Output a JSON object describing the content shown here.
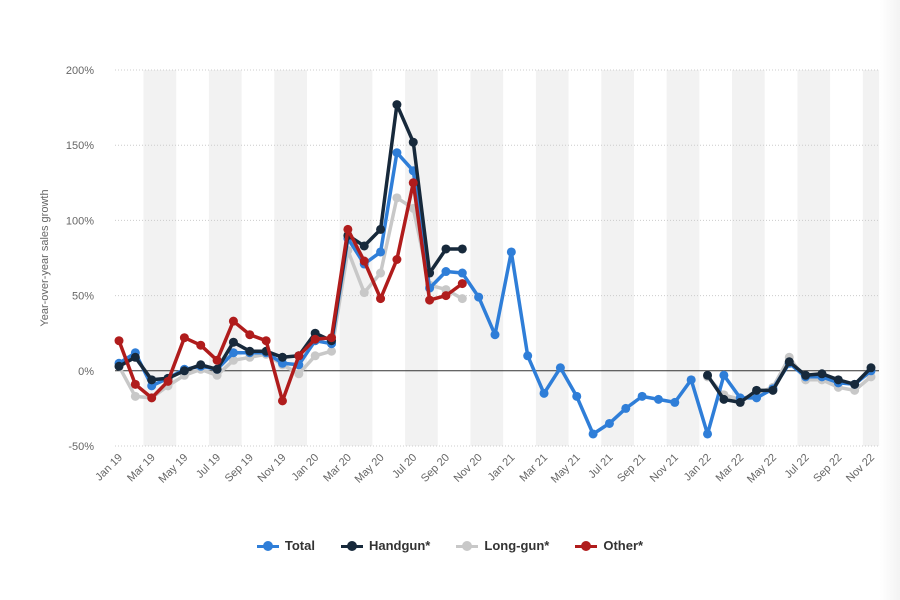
{
  "chart_data": {
    "type": "line",
    "ylabel": "Year-over-year sales growth",
    "xlabel": "",
    "ylim": [
      -50,
      200
    ],
    "yticks": [
      200,
      150,
      100,
      50,
      0,
      -50
    ],
    "ytick_labels": [
      "200%",
      "150%",
      "100%",
      "50%",
      "0%",
      "-50%"
    ],
    "categories": [
      "Jan 19",
      "Feb 19",
      "Mar 19",
      "Apr 19",
      "May 19",
      "Jun 19",
      "Jul 19",
      "Aug 19",
      "Sep 19",
      "Oct 19",
      "Nov 19",
      "Dec 19",
      "Jan 20",
      "Feb 20",
      "Mar 20",
      "Apr 20",
      "May 20",
      "Jun 20",
      "Jul 20",
      "Aug 20",
      "Sep 20",
      "Oct 20",
      "Nov 20",
      "Dec 20",
      "Jan 21",
      "Feb 21",
      "Mar 21",
      "Apr 21",
      "May 21",
      "Jun 21",
      "Jul 21",
      "Aug 21",
      "Sep 21",
      "Oct 21",
      "Nov 21",
      "Dec 21",
      "Jan 22",
      "Feb 22",
      "Mar 22",
      "Apr 22",
      "May 22",
      "Jun 22",
      "Jul 22",
      "Aug 22",
      "Sep 22",
      "Oct 22",
      "Nov 22"
    ],
    "xtick_labels": [
      "Jan 19",
      "Mar 19",
      "May 19",
      "Jul 19",
      "Sep 19",
      "Nov 19",
      "Jan 20",
      "Mar 20",
      "May 20",
      "Jul 20",
      "Sep 20",
      "Nov 20",
      "Jan 21",
      "Mar 21",
      "May 21",
      "Jul 21",
      "Sep 21",
      "Nov 21",
      "Jan 22",
      "Mar 22",
      "May 22",
      "Jul 22",
      "Sep 22",
      "Nov 22"
    ],
    "grid": true,
    "legend_position": "bottom-center",
    "series": [
      {
        "name": "Long-gun*",
        "color": "#c8c8c8",
        "values": [
          3,
          -17,
          -18,
          -10,
          -3,
          1,
          -3,
          7,
          9,
          11,
          4,
          -2,
          10,
          13,
          80,
          52,
          65,
          115,
          108,
          57,
          54,
          48,
          null,
          null,
          null,
          null,
          null,
          null,
          null,
          null,
          null,
          null,
          null,
          null,
          null,
          null,
          -4,
          -16,
          -19,
          -15,
          -11,
          9,
          -6,
          -6,
          -11,
          -13,
          -4
        ]
      },
      {
        "name": "Total",
        "color": "#2f7ed8",
        "values": [
          5,
          12,
          -10,
          -5,
          1,
          3,
          1,
          12,
          12,
          12,
          5,
          4,
          20,
          18,
          88,
          71,
          79,
          145,
          133,
          55,
          66,
          65,
          49,
          24,
          79,
          10,
          -15,
          2,
          -17,
          -42,
          -35,
          -25,
          -17,
          -19,
          -21,
          -6,
          -42,
          -3,
          -18,
          -18,
          -12,
          5,
          -4,
          -4,
          -8,
          -9,
          0
        ]
      },
      {
        "name": "Handgun*",
        "color": "#17293b",
        "values": [
          3,
          9,
          -6,
          -5,
          0,
          4,
          1,
          19,
          13,
          13,
          9,
          10,
          25,
          20,
          90,
          83,
          94,
          177,
          152,
          65,
          81,
          81,
          null,
          null,
          null,
          null,
          null,
          null,
          null,
          null,
          null,
          null,
          null,
          null,
          null,
          null,
          -3,
          -19,
          -21,
          -13,
          -13,
          6,
          -3,
          -2,
          -6,
          -9,
          2
        ]
      },
      {
        "name": "Other*",
        "color": "#b01c1c",
        "values": [
          20,
          -9,
          -18,
          -7,
          22,
          17,
          7,
          33,
          24,
          20,
          -20,
          10,
          21,
          22,
          94,
          73,
          48,
          74,
          125,
          47,
          50,
          58,
          null,
          null,
          null,
          null,
          null,
          null,
          null,
          null,
          null,
          null,
          null,
          null,
          null,
          null,
          null,
          null,
          null,
          null,
          null,
          null,
          null,
          null,
          null,
          null,
          null
        ]
      }
    ],
    "legend_order": [
      "Total",
      "Handgun*",
      "Long-gun*",
      "Other*"
    ]
  },
  "legend": {
    "items": [
      {
        "label": "Total",
        "color": "#2f7ed8"
      },
      {
        "label": "Handgun*",
        "color": "#17293b"
      },
      {
        "label": "Long-gun*",
        "color": "#c8c8c8"
      },
      {
        "label": "Other*",
        "color": "#b01c1c"
      }
    ]
  },
  "colors": {
    "band": "#f2f2f2",
    "grid": "#cccccc",
    "zero_line": "#333333"
  }
}
